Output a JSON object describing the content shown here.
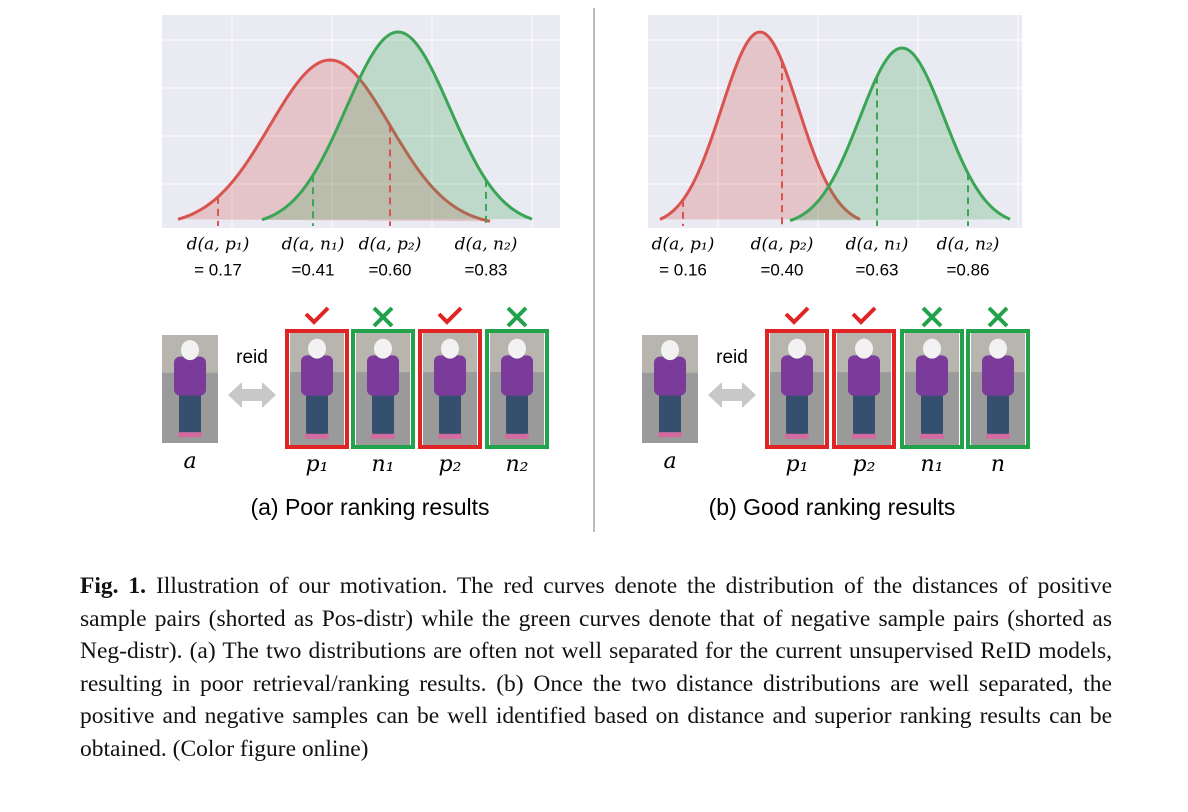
{
  "panels": [
    {
      "distances": [
        {
          "label": "d(a, p₁)",
          "value": "= 0.17"
        },
        {
          "label": "d(a, n₁)",
          "value": "=0.41"
        },
        {
          "label": "d(a, p₂)",
          "value": "=0.60"
        },
        {
          "label": "d(a, n₂)",
          "value": "=0.83"
        }
      ],
      "query_label": "reid",
      "anchor": "a",
      "results": [
        "p₁",
        "n₁",
        "p₂",
        "n₂"
      ],
      "caption": "(a)  Poor ranking results"
    },
    {
      "distances": [
        {
          "label": "d(a, p₁)",
          "value": "= 0.16"
        },
        {
          "label": "d(a, p₂)",
          "value": "=0.40"
        },
        {
          "label": "d(a, n₁)",
          "value": "=0.63"
        },
        {
          "label": "d(a, n₂)",
          "value": "=0.86"
        }
      ],
      "query_label": "reid",
      "anchor": "a",
      "results": [
        "p₁",
        "p₂",
        "n₁",
        "n"
      ],
      "caption": "(b)  Good ranking results"
    }
  ],
  "figure_caption": {
    "label": "Fig. 1.",
    "text": "Illustration of our motivation. The red curves denote the distribution of the distances of positive sample pairs (shorted as Pos-distr) while the green curves denote that of negative sample pairs (shorted as Neg-distr). (a) The two distributions are often not well separated for the current unsupervised ReID models, resulting in poor retrieval/ranking results. (b) Once the two distance distributions are well separated, the positive and negative samples can be well identified based on distance and superior ranking results can be obtained. (Color figure online)"
  }
}
